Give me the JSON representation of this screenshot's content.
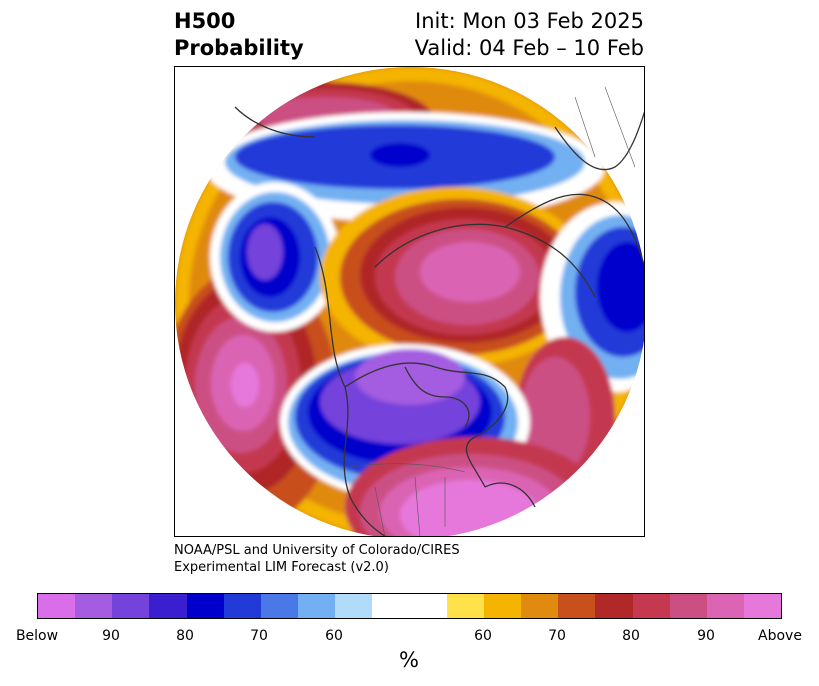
{
  "title": {
    "left_line1": "H500",
    "left_line2": "Probability",
    "right_line1": "Init: Mon 03 Feb 2025",
    "right_line2": "Valid: 04 Feb – 10 Feb"
  },
  "credit": {
    "line1": "NOAA/PSL and University of Colorado/CIRES",
    "line2": "Experimental LIM Forecast (v2.0)"
  },
  "colorbar": {
    "colors": [
      "#d96fe8",
      "#a45ce0",
      "#7443db",
      "#3a1fd0",
      "#0000cc",
      "#223ad8",
      "#4a78e6",
      "#72b0f2",
      "#b0dcfa",
      "#ffffff",
      "#ffffff",
      "#ffe24a",
      "#f4b400",
      "#e08a10",
      "#c8501c",
      "#b02828",
      "#c43850",
      "#cc4f84",
      "#db64b4",
      "#e678dc"
    ],
    "ticks": [
      "Below",
      "90",
      "80",
      "70",
      "60",
      "60",
      "70",
      "80",
      "90",
      "Above"
    ],
    "unit": "%"
  },
  "map": {
    "projection": "north-polar-stereographic",
    "background_color": "#ffffff",
    "coastline_color": "#333333"
  }
}
